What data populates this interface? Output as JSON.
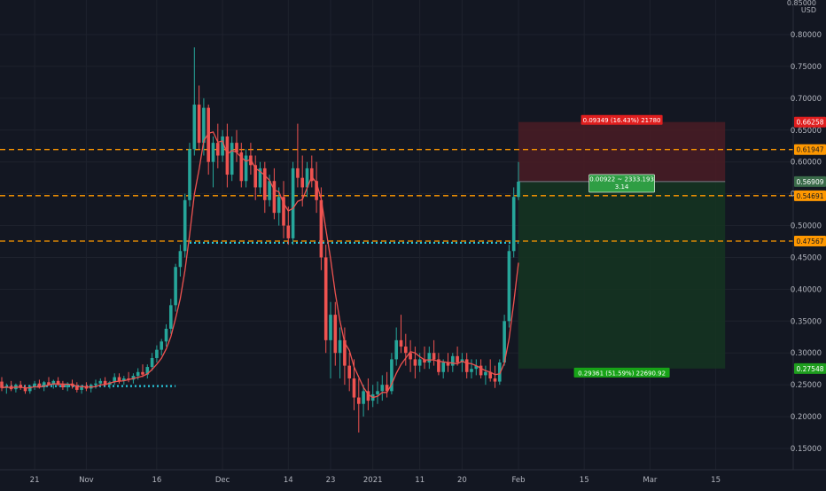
{
  "colors": {
    "background": "#131722",
    "grid": "#1e222d",
    "axis_text": "#b2b5be",
    "up": "#26a69a",
    "down": "#ef5350",
    "ma_line": "#ef5350",
    "level_line": "#ff9800",
    "dotted_line": "#26c6da",
    "stop_zone": "#4a1c24",
    "target_zone": "#153321",
    "stop_label": "#e01e1e",
    "target_label": "#17a317",
    "entry_label": "#2f9e44"
  },
  "chart_data": {
    "type": "candlestick",
    "currency": "USD",
    "y_axis": {
      "range": [
        0.1,
        0.85
      ],
      "ticks": [
        "0.80000",
        "0.75000",
        "0.70000",
        "0.65000",
        "0.60000",
        "0.55000",
        "0.50000",
        "0.45000",
        "0.40000",
        "0.35000",
        "0.30000",
        "0.25000",
        "0.20000",
        "0.15000"
      ],
      "top_partial_tick": "0.85000"
    },
    "x_axis": {
      "ticks": [
        {
          "label": "21",
          "bar": 7
        },
        {
          "label": "Nov",
          "bar": 18
        },
        {
          "label": "16",
          "bar": 33
        },
        {
          "label": "Dec",
          "bar": 47
        },
        {
          "label": "14",
          "bar": 61
        },
        {
          "label": "23",
          "bar": 70
        },
        {
          "label": "2021",
          "bar": 79
        },
        {
          "label": "11",
          "bar": 89
        },
        {
          "label": "20",
          "bar": 98
        },
        {
          "label": "Feb",
          "bar": 110
        },
        {
          "label": "15",
          "bar": 124
        },
        {
          "label": "Mar",
          "bar": 138
        },
        {
          "label": "15",
          "bar": 152
        }
      ]
    },
    "price_tags": [
      {
        "value": 0.66258,
        "label": "0.66258",
        "kind": "stop"
      },
      {
        "value": 0.61947,
        "label": "0.61947",
        "kind": "level"
      },
      {
        "value": 0.56909,
        "label": "0.56909",
        "kind": "entry"
      },
      {
        "value": 0.54691,
        "label": "0.54691",
        "kind": "level"
      },
      {
        "value": 0.47567,
        "label": "0.47567",
        "kind": "level"
      },
      {
        "value": 0.27548,
        "label": "0.27548",
        "kind": "target"
      }
    ],
    "horizontal_levels": [
      0.61947,
      0.54691,
      0.47567
    ],
    "position": {
      "entry": 0.56909,
      "stop": 0.66258,
      "target": 0.27548,
      "start_bar": 110,
      "end_bar": 154,
      "stop_label": "0.09349 (16.43%) 21780",
      "target_label": "0.29361 (51.59%) 22690.92",
      "entry_label_line1": "0.00922 ~ 2333.193",
      "entry_label_line2": "3.14"
    },
    "dotted_segments": [
      {
        "value": 0.248,
        "start_bar": 0,
        "end_bar": 37
      },
      {
        "value": 0.473,
        "start_bar": 40,
        "end_bar": 110
      }
    ],
    "candles": [
      [
        0.255,
        0.262,
        0.24,
        0.245
      ],
      [
        0.245,
        0.252,
        0.236,
        0.248
      ],
      [
        0.248,
        0.256,
        0.24,
        0.243
      ],
      [
        0.243,
        0.252,
        0.238,
        0.25
      ],
      [
        0.25,
        0.256,
        0.242,
        0.245
      ],
      [
        0.245,
        0.25,
        0.236,
        0.24
      ],
      [
        0.24,
        0.25,
        0.236,
        0.248
      ],
      [
        0.248,
        0.256,
        0.242,
        0.252
      ],
      [
        0.252,
        0.258,
        0.244,
        0.246
      ],
      [
        0.246,
        0.256,
        0.24,
        0.254
      ],
      [
        0.254,
        0.262,
        0.248,
        0.25
      ],
      [
        0.25,
        0.258,
        0.244,
        0.256
      ],
      [
        0.256,
        0.262,
        0.248,
        0.25
      ],
      [
        0.25,
        0.256,
        0.242,
        0.246
      ],
      [
        0.246,
        0.254,
        0.24,
        0.252
      ],
      [
        0.252,
        0.258,
        0.244,
        0.248
      ],
      [
        0.248,
        0.254,
        0.238,
        0.242
      ],
      [
        0.242,
        0.25,
        0.236,
        0.248
      ],
      [
        0.248,
        0.254,
        0.24,
        0.244
      ],
      [
        0.244,
        0.252,
        0.238,
        0.25
      ],
      [
        0.25,
        0.258,
        0.244,
        0.252
      ],
      [
        0.252,
        0.26,
        0.246,
        0.256
      ],
      [
        0.256,
        0.262,
        0.248,
        0.25
      ],
      [
        0.25,
        0.256,
        0.244,
        0.254
      ],
      [
        0.254,
        0.268,
        0.25,
        0.262
      ],
      [
        0.262,
        0.268,
        0.252,
        0.256
      ],
      [
        0.256,
        0.264,
        0.25,
        0.26
      ],
      [
        0.26,
        0.27,
        0.254,
        0.258
      ],
      [
        0.258,
        0.268,
        0.252,
        0.264
      ],
      [
        0.264,
        0.276,
        0.258,
        0.27
      ],
      [
        0.27,
        0.282,
        0.262,
        0.266
      ],
      [
        0.266,
        0.282,
        0.26,
        0.278
      ],
      [
        0.278,
        0.3,
        0.272,
        0.292
      ],
      [
        0.292,
        0.312,
        0.285,
        0.305
      ],
      [
        0.305,
        0.322,
        0.296,
        0.318
      ],
      [
        0.318,
        0.345,
        0.31,
        0.338
      ],
      [
        0.338,
        0.385,
        0.33,
        0.375
      ],
      [
        0.375,
        0.44,
        0.365,
        0.435
      ],
      [
        0.435,
        0.47,
        0.42,
        0.46
      ],
      [
        0.46,
        0.55,
        0.45,
        0.54
      ],
      [
        0.54,
        0.63,
        0.53,
        0.62
      ],
      [
        0.62,
        0.78,
        0.61,
        0.69
      ],
      [
        0.69,
        0.72,
        0.62,
        0.63
      ],
      [
        0.63,
        0.7,
        0.61,
        0.685
      ],
      [
        0.685,
        0.69,
        0.58,
        0.6
      ],
      [
        0.6,
        0.64,
        0.56,
        0.63
      ],
      [
        0.63,
        0.66,
        0.59,
        0.61
      ],
      [
        0.61,
        0.65,
        0.6,
        0.64
      ],
      [
        0.64,
        0.66,
        0.56,
        0.58
      ],
      [
        0.58,
        0.64,
        0.57,
        0.63
      ],
      [
        0.63,
        0.65,
        0.6,
        0.615
      ],
      [
        0.615,
        0.63,
        0.56,
        0.57
      ],
      [
        0.57,
        0.62,
        0.56,
        0.61
      ],
      [
        0.61,
        0.63,
        0.58,
        0.595
      ],
      [
        0.595,
        0.61,
        0.54,
        0.56
      ],
      [
        0.56,
        0.6,
        0.55,
        0.59
      ],
      [
        0.59,
        0.6,
        0.52,
        0.54
      ],
      [
        0.54,
        0.58,
        0.53,
        0.57
      ],
      [
        0.57,
        0.59,
        0.51,
        0.52
      ],
      [
        0.52,
        0.56,
        0.5,
        0.545
      ],
      [
        0.545,
        0.57,
        0.48,
        0.5
      ],
      [
        0.5,
        0.53,
        0.47,
        0.48
      ],
      [
        0.48,
        0.6,
        0.47,
        0.59
      ],
      [
        0.59,
        0.66,
        0.56,
        0.575
      ],
      [
        0.575,
        0.61,
        0.53,
        0.56
      ],
      [
        0.56,
        0.6,
        0.545,
        0.59
      ],
      [
        0.59,
        0.61,
        0.56,
        0.57
      ],
      [
        0.57,
        0.6,
        0.52,
        0.54
      ],
      [
        0.54,
        0.56,
        0.43,
        0.45
      ],
      [
        0.45,
        0.47,
        0.3,
        0.32
      ],
      [
        0.32,
        0.38,
        0.26,
        0.36
      ],
      [
        0.36,
        0.38,
        0.28,
        0.3
      ],
      [
        0.3,
        0.34,
        0.26,
        0.32
      ],
      [
        0.32,
        0.34,
        0.25,
        0.28
      ],
      [
        0.28,
        0.3,
        0.24,
        0.26
      ],
      [
        0.26,
        0.29,
        0.21,
        0.23
      ],
      [
        0.23,
        0.26,
        0.175,
        0.22
      ],
      [
        0.22,
        0.25,
        0.2,
        0.24
      ],
      [
        0.24,
        0.26,
        0.21,
        0.225
      ],
      [
        0.225,
        0.25,
        0.215,
        0.235
      ],
      [
        0.235,
        0.255,
        0.22,
        0.24
      ],
      [
        0.24,
        0.265,
        0.225,
        0.25
      ],
      [
        0.25,
        0.27,
        0.23,
        0.24
      ],
      [
        0.24,
        0.3,
        0.235,
        0.29
      ],
      [
        0.29,
        0.34,
        0.28,
        0.32
      ],
      [
        0.32,
        0.36,
        0.3,
        0.31
      ],
      [
        0.31,
        0.33,
        0.28,
        0.3
      ],
      [
        0.3,
        0.32,
        0.27,
        0.29
      ],
      [
        0.29,
        0.31,
        0.26,
        0.28
      ],
      [
        0.28,
        0.3,
        0.27,
        0.29
      ],
      [
        0.29,
        0.31,
        0.275,
        0.285
      ],
      [
        0.285,
        0.31,
        0.275,
        0.3
      ],
      [
        0.3,
        0.32,
        0.28,
        0.29
      ],
      [
        0.29,
        0.3,
        0.265,
        0.27
      ],
      [
        0.27,
        0.29,
        0.26,
        0.285
      ],
      [
        0.285,
        0.3,
        0.27,
        0.28
      ],
      [
        0.28,
        0.3,
        0.27,
        0.295
      ],
      [
        0.295,
        0.31,
        0.28,
        0.285
      ],
      [
        0.285,
        0.3,
        0.27,
        0.29
      ],
      [
        0.29,
        0.3,
        0.26,
        0.27
      ],
      [
        0.27,
        0.29,
        0.26,
        0.275
      ],
      [
        0.275,
        0.29,
        0.265,
        0.28
      ],
      [
        0.28,
        0.29,
        0.26,
        0.265
      ],
      [
        0.265,
        0.28,
        0.25,
        0.27
      ],
      [
        0.27,
        0.29,
        0.255,
        0.26
      ],
      [
        0.26,
        0.28,
        0.245,
        0.255
      ],
      [
        0.255,
        0.29,
        0.25,
        0.285
      ],
      [
        0.285,
        0.36,
        0.28,
        0.35
      ],
      [
        0.35,
        0.47,
        0.34,
        0.46
      ],
      [
        0.46,
        0.56,
        0.45,
        0.545
      ],
      [
        0.545,
        0.6,
        0.54,
        0.569
      ]
    ]
  }
}
